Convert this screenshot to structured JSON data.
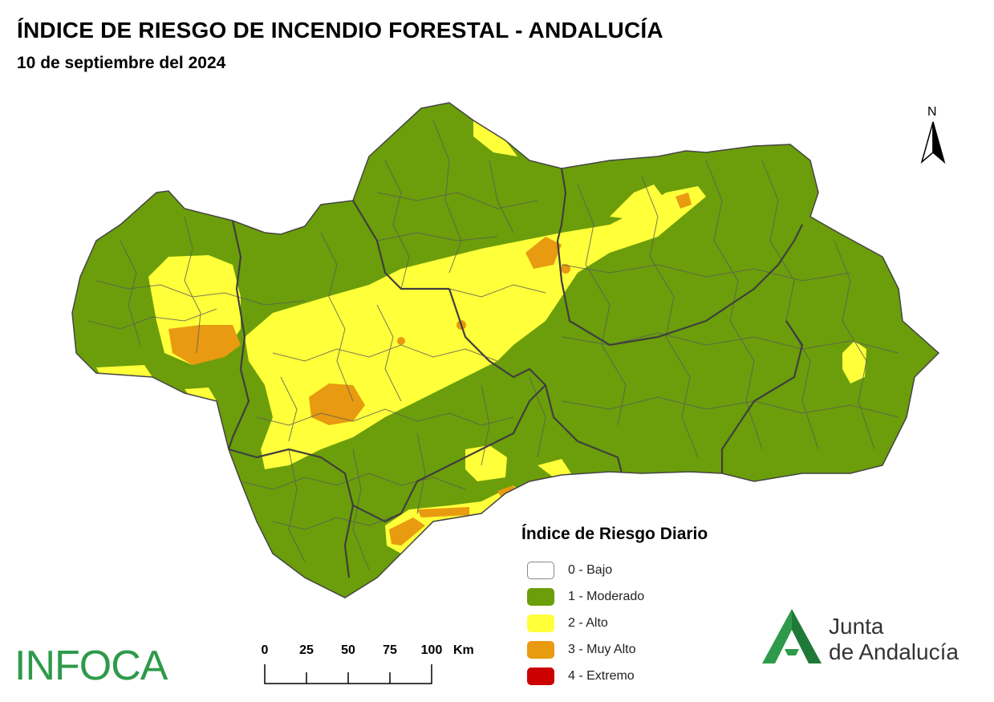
{
  "header": {
    "title": "ÍNDICE DE RIESGO DE INCENDIO FORESTAL - ANDALUCÍA",
    "date": "10 de septiembre del 2024"
  },
  "north_arrow": {
    "label": "N"
  },
  "legend": {
    "title": "Índice de Riesgo Diario",
    "items": [
      {
        "label": "0 - Bajo",
        "color": "#ffffff"
      },
      {
        "label": "1 - Moderado",
        "color": "#6b9e0a"
      },
      {
        "label": "2 - Alto",
        "color": "#ffff3a"
      },
      {
        "label": "3 - Muy Alto",
        "color": "#e89a10"
      },
      {
        "label": "4 - Extremo",
        "color": "#cc0000"
      }
    ]
  },
  "scale_bar": {
    "ticks": [
      "0",
      "25",
      "50",
      "75",
      "100"
    ],
    "unit": "Km"
  },
  "logos": {
    "infoca": "INFOCA",
    "junta_line1": "Junta",
    "junta_line2": "de Andalucía"
  },
  "colors": {
    "moderado": "#6b9e0a",
    "alto": "#ffff3a",
    "muy_alto": "#e89a10",
    "border": "#555555",
    "infoca": "#2e9a4a",
    "junta": "#2e9a4a"
  }
}
